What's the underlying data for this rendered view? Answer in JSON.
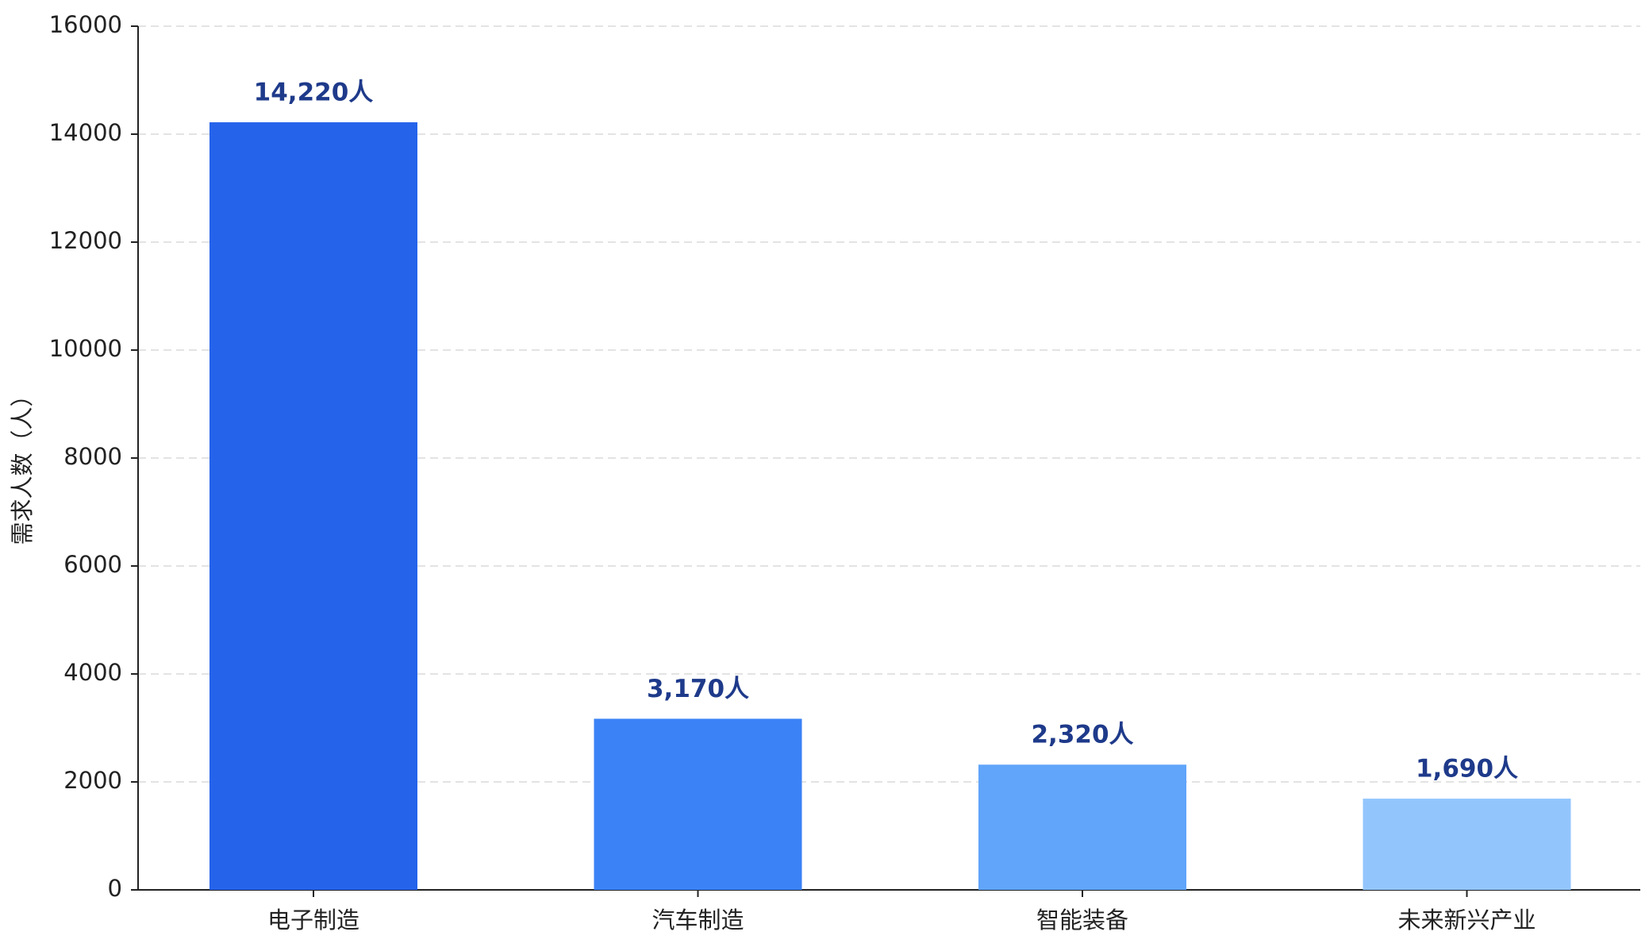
{
  "chart_data": {
    "type": "bar",
    "y_label": "需求人数（人）",
    "categories": [
      "电子制造",
      "汽车制造",
      "智能装备",
      "未来新兴产业"
    ],
    "values": [
      14220,
      3170,
      2320,
      1690
    ],
    "value_labels": [
      "14,220人",
      "3,170人",
      "2,320人",
      "1,690人"
    ],
    "colors": [
      "#2563eb",
      "#3b82f6",
      "#60a5fa",
      "#93c5fd"
    ],
    "ylim": [
      0,
      16000
    ],
    "yticks": [
      0,
      2000,
      4000,
      6000,
      8000,
      10000,
      12000,
      14000,
      16000
    ],
    "grid": true
  }
}
